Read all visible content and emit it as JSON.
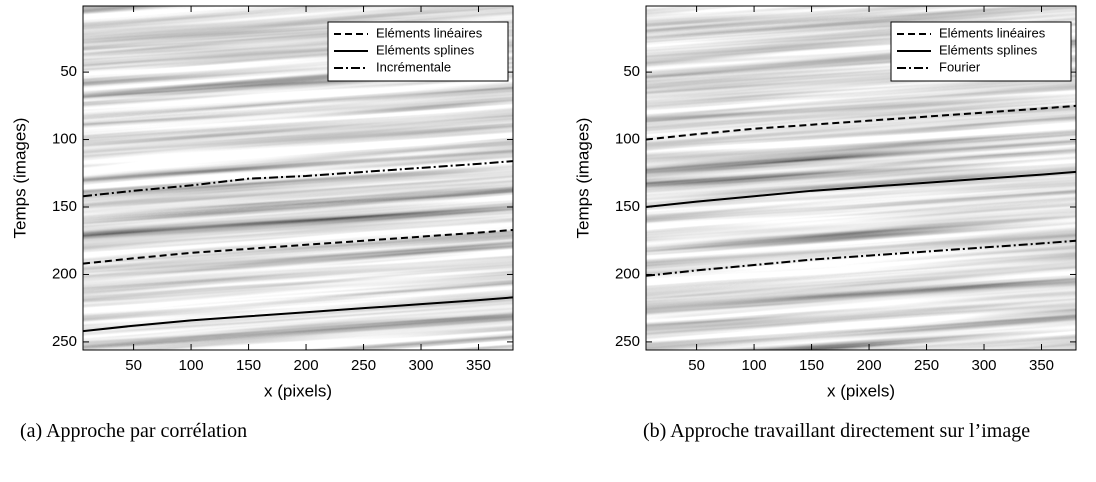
{
  "chart_data": [
    {
      "type": "line",
      "xlabel": "x (pixels)",
      "ylabel": "Temps (images)",
      "caption": "(a) Approche par corrélation",
      "xlim": [
        6,
        380
      ],
      "ylim": [
        256,
        1
      ],
      "xticks": [
        50,
        100,
        150,
        200,
        250,
        300,
        350
      ],
      "yticks": [
        50,
        100,
        150,
        200,
        250
      ],
      "legend": "upper right",
      "x": [
        6,
        50,
        100,
        150,
        200,
        250,
        300,
        350,
        380
      ],
      "series": [
        {
          "name": "Eléments linéaires",
          "color": "#000000",
          "style": "dashed",
          "values": [
            192,
            188,
            184,
            181,
            178,
            175,
            172,
            169,
            167
          ]
        },
        {
          "name": "Eléments splines",
          "color": "#000000",
          "style": "solid",
          "values": [
            242,
            238,
            234,
            231,
            228,
            225,
            222,
            219,
            217
          ]
        },
        {
          "name": "Incrémentale",
          "color": "#000000",
          "style": "dashdot",
          "values": [
            142,
            138,
            134,
            129,
            127,
            124,
            121,
            118,
            116
          ]
        }
      ]
    },
    {
      "type": "line",
      "xlabel": "x (pixels)",
      "ylabel": "Temps (images)",
      "caption": "(b) Approche travaillant directement sur l’image",
      "xlim": [
        6,
        380
      ],
      "ylim": [
        256,
        1
      ],
      "xticks": [
        50,
        100,
        150,
        200,
        250,
        300,
        350
      ],
      "yticks": [
        50,
        100,
        150,
        200,
        250
      ],
      "legend": "upper right",
      "x": [
        6,
        50,
        100,
        150,
        200,
        250,
        300,
        350,
        380
      ],
      "series": [
        {
          "name": "Eléments linéaires",
          "color": "#000000",
          "style": "dashed",
          "values": [
            100,
            96,
            92,
            89,
            86,
            83,
            80,
            77,
            75
          ]
        },
        {
          "name": "Eléments splines",
          "color": "#000000",
          "style": "solid",
          "values": [
            150,
            146,
            142,
            138,
            135,
            132,
            129,
            126,
            124
          ]
        },
        {
          "name": "Fourier",
          "color": "#000000",
          "style": "dashdot",
          "values": [
            201,
            197,
            193,
            189,
            186,
            183,
            180,
            177,
            175
          ]
        }
      ]
    }
  ]
}
